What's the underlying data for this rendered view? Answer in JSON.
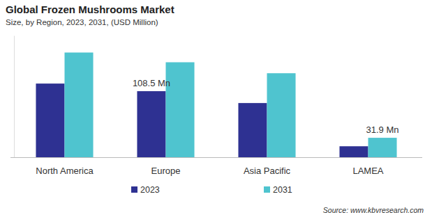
{
  "chart_data": {
    "type": "bar",
    "title": "Global Frozen Mushrooms Market",
    "subtitle": "Size, by Region, 2023, 2031, (USD Million)",
    "source": "Source: www.kbvresearch.com",
    "categories": [
      "North America",
      "Europe",
      "Asia Pacific",
      "LAMEA"
    ],
    "series": [
      {
        "name": "2023",
        "color": "#2e3192",
        "values": [
          121,
          108.5,
          89,
          18
        ],
        "value_labels": [
          null,
          "108.5 Mn",
          null,
          null
        ]
      },
      {
        "name": "2031",
        "color": "#4fc4cf",
        "values": [
          172,
          156,
          138,
          31.9
        ],
        "value_labels": [
          null,
          null,
          null,
          "31.9 Mn"
        ]
      }
    ],
    "ylim": [
      0,
      200
    ],
    "yticks": [],
    "tick_labels": "x",
    "grid": false,
    "legend": "bottom"
  }
}
